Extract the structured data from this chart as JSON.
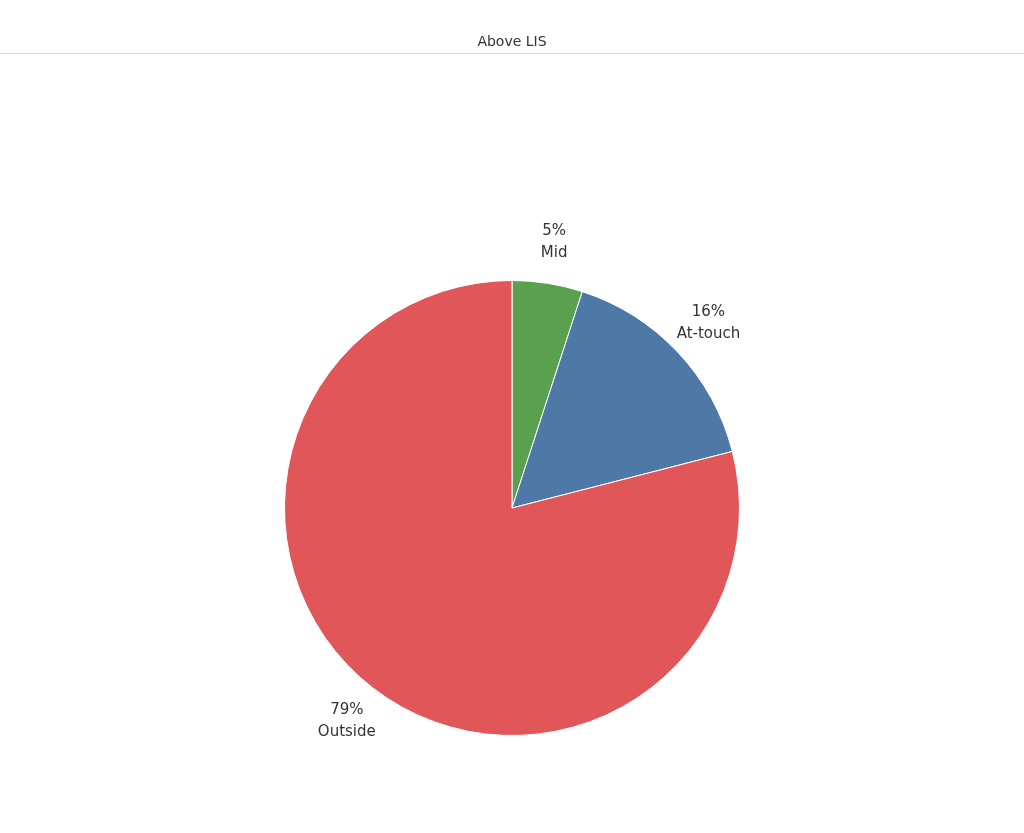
{
  "chart_data": {
    "type": "pie",
    "title": "Above LIS",
    "categories": [
      "Mid",
      "At-touch",
      "Outside"
    ],
    "values": [
      5,
      16,
      79
    ],
    "value_labels": [
      "5%",
      "16%",
      "79%"
    ],
    "colors": [
      "#59a14f",
      "#4e79a7",
      "#e15759"
    ],
    "legend": false
  }
}
